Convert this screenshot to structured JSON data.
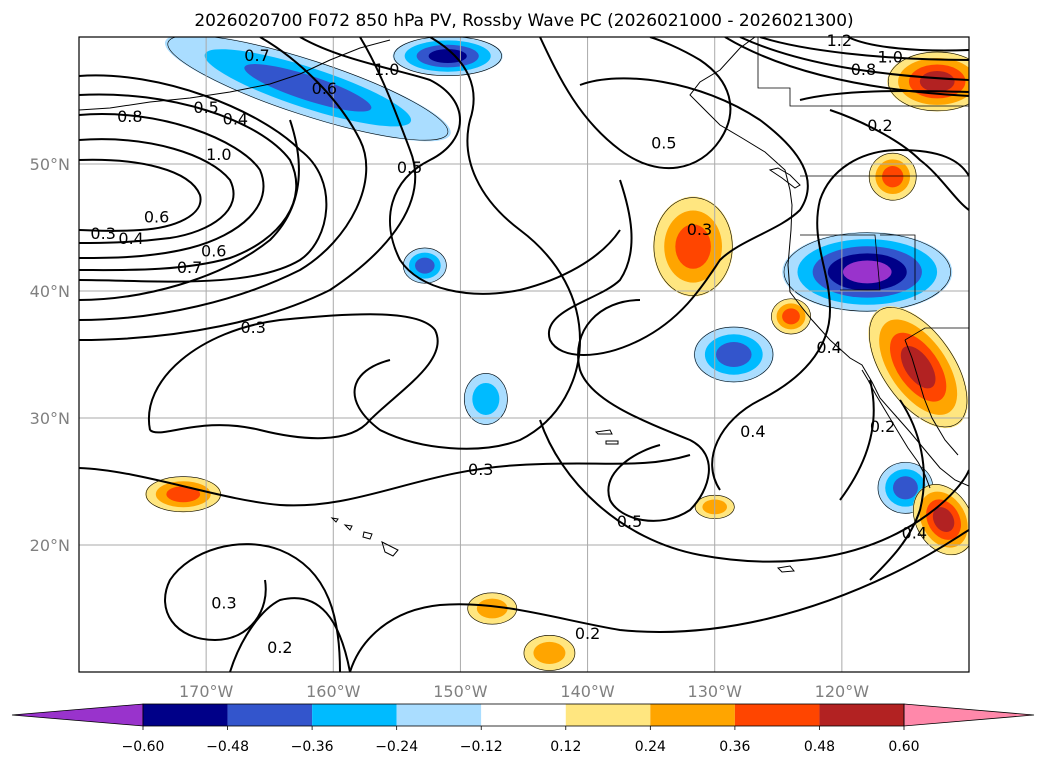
{
  "chart_data": {
    "type": "contour map",
    "title": "2026020700 F072 850 hPa PV, Rossby Wave PC (2026021000 - 2026021300)",
    "xlim": [
      -180,
      -110
    ],
    "ylim": [
      10,
      60
    ],
    "x_ticks": [
      -170,
      -160,
      -150,
      -140,
      -130,
      -120
    ],
    "x_tick_labels": [
      "170°W",
      "160°W",
      "150°W",
      "140°W",
      "130°W",
      "120°W"
    ],
    "y_ticks": [
      20,
      30,
      40,
      50
    ],
    "y_tick_labels": [
      "20°N",
      "30°N",
      "40°N",
      "50°N"
    ],
    "colorbar": {
      "levels": [
        -0.6,
        -0.48,
        -0.36,
        -0.24,
        -0.12,
        0.12,
        0.24,
        0.36,
        0.48,
        0.6
      ],
      "labels": [
        "−0.60",
        "−0.48",
        "−0.36",
        "−0.24",
        "−0.12",
        "0.12",
        "0.24",
        "0.36",
        "0.48",
        "0.60"
      ],
      "colors": [
        "#9933cc",
        "#000088",
        "#3355cc",
        "#00bbff",
        "#aaddff",
        "#ffffff",
        "#ffe680",
        "#ffa500",
        "#ff4500",
        "#b22222",
        "#ff88aa"
      ]
    },
    "contour_labels": [
      {
        "text": "0.7",
        "lon": -166.0,
        "lat": 58.5
      },
      {
        "text": "1.0",
        "lon": -155.8,
        "lat": 57.4
      },
      {
        "text": "0.6",
        "lon": -160.7,
        "lat": 55.9
      },
      {
        "text": "0.5",
        "lon": -170.0,
        "lat": 54.4
      },
      {
        "text": "0.4",
        "lon": -167.7,
        "lat": 53.5
      },
      {
        "text": "0.8",
        "lon": -176.0,
        "lat": 53.7
      },
      {
        "text": "1.0",
        "lon": -169.0,
        "lat": 50.7
      },
      {
        "text": "0.5",
        "lon": -154.0,
        "lat": 49.7
      },
      {
        "text": "0.5",
        "lon": -134.0,
        "lat": 51.6
      },
      {
        "text": "0.3",
        "lon": -178.1,
        "lat": 44.5
      },
      {
        "text": "0.4",
        "lon": -175.9,
        "lat": 44.1
      },
      {
        "text": "0.6",
        "lon": -173.9,
        "lat": 45.8
      },
      {
        "text": "0.7",
        "lon": -171.3,
        "lat": 41.8
      },
      {
        "text": "0.6",
        "lon": -169.4,
        "lat": 43.1
      },
      {
        "text": "0.3",
        "lon": -131.2,
        "lat": 44.8
      },
      {
        "text": "1.2",
        "lon": -120.2,
        "lat": 59.7
      },
      {
        "text": "1.0",
        "lon": -116.2,
        "lat": 58.4
      },
      {
        "text": "0.8",
        "lon": -118.3,
        "lat": 57.4
      },
      {
        "text": "0.2",
        "lon": -117.0,
        "lat": 53.0
      },
      {
        "text": "0.3",
        "lon": -166.3,
        "lat": 37.1
      },
      {
        "text": "0.4",
        "lon": -121.0,
        "lat": 35.5
      },
      {
        "text": "0.4",
        "lon": -127.0,
        "lat": 28.9
      },
      {
        "text": "0.2",
        "lon": -116.8,
        "lat": 29.3
      },
      {
        "text": "0.3",
        "lon": -148.4,
        "lat": 25.9
      },
      {
        "text": "0.5",
        "lon": -136.7,
        "lat": 21.8
      },
      {
        "text": "0.4",
        "lon": -114.3,
        "lat": 20.9
      },
      {
        "text": "0.3",
        "lon": -168.6,
        "lat": 15.4
      },
      {
        "text": "0.2",
        "lon": -140.0,
        "lat": 13.0
      },
      {
        "text": "0.2",
        "lon": -164.2,
        "lat": 11.9
      }
    ],
    "shaded_regions": [
      {
        "level": -0.36,
        "lon": -162.0,
        "lat": 56.0
      },
      {
        "level": -0.48,
        "lon": -151.0,
        "lat": 58.5
      },
      {
        "level": -0.24,
        "lon": -148.0,
        "lat": 31.5
      },
      {
        "level": -0.36,
        "lon": -152.8,
        "lat": 42.0
      },
      {
        "level": -0.36,
        "lon": -128.5,
        "lat": 35.0
      },
      {
        "level": -0.6,
        "lon": -118.0,
        "lat": 41.5
      },
      {
        "level": -0.36,
        "lon": -115.0,
        "lat": 24.5
      },
      {
        "level": 0.36,
        "lon": -131.7,
        "lat": 43.5
      },
      {
        "level": 0.36,
        "lon": -171.8,
        "lat": 24.0
      },
      {
        "level": 0.48,
        "lon": -114.0,
        "lat": 34.0
      },
      {
        "level": 0.48,
        "lon": -112.0,
        "lat": 22.0
      },
      {
        "level": 0.48,
        "lon": -112.5,
        "lat": 56.5
      },
      {
        "level": 0.36,
        "lon": -116.0,
        "lat": 49.0
      },
      {
        "level": 0.36,
        "lon": -124.0,
        "lat": 38.0
      },
      {
        "level": 0.24,
        "lon": -143.0,
        "lat": 11.5
      },
      {
        "level": 0.24,
        "lon": -147.5,
        "lat": 15.0
      },
      {
        "level": 0.24,
        "lon": -130.0,
        "lat": 23.0
      }
    ]
  }
}
